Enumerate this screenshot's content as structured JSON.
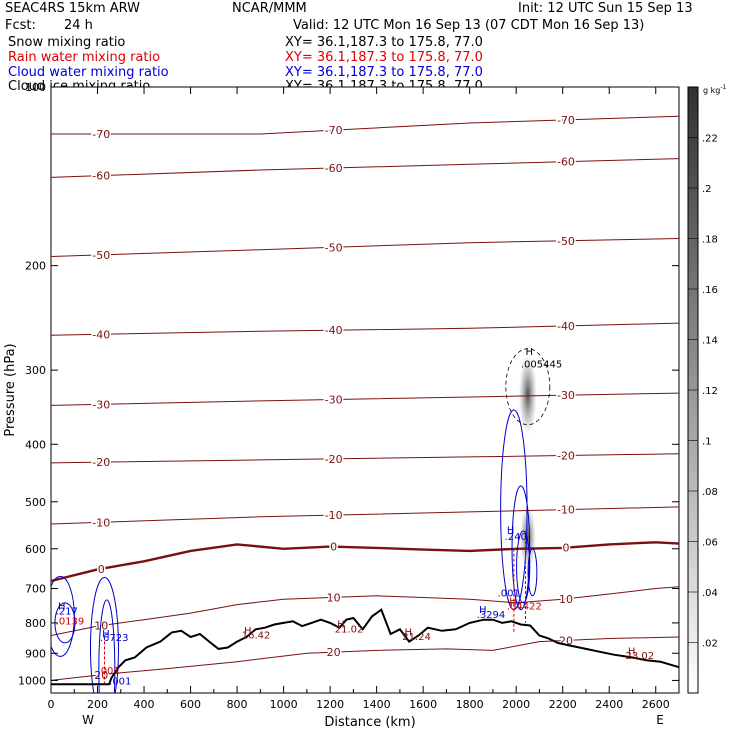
{
  "header": {
    "model": "SEAC4RS 15km ARW",
    "org": "NCAR/MMM",
    "init": "Init: 12 UTC Sun 15 Sep 13",
    "fcst_label": "Fcst:",
    "fcst_value": "24 h",
    "valid": "Valid: 12 UTC Mon 16 Sep 13 (07 CDT Mon 16 Sep 13)",
    "fields": [
      {
        "name": "Snow mixing ratio",
        "xy": "XY=  36.1,187.3 to 175.8, 77.0",
        "color": "#000000"
      },
      {
        "name": "Rain water mixing ratio",
        "xy": "XY=  36.1,187.3 to 175.8, 77.0",
        "color": "#e00000"
      },
      {
        "name": "Cloud water mixing ratio",
        "xy": "XY=  36.1,187.3 to 175.8, 77.0",
        "color": "#0000d0"
      },
      {
        "name": "Cloud ice mixing ratio",
        "xy": "XY=  36.1,187.3 to 175.8, 77.0",
        "color": "#000000"
      }
    ]
  },
  "colors": {
    "temperature": "#7a1010",
    "cloud_water": "#0000cc",
    "rain": "#dd0000",
    "terrain": "#000000"
  },
  "chart_data": {
    "type": "contour",
    "xlabel": "Distance (km)",
    "ylabel": "Pressure (hPa)",
    "xlim": [
      0,
      2700
    ],
    "ylim": [
      1050,
      100
    ],
    "y_scale": "log",
    "x_ticks": [
      0,
      200,
      400,
      600,
      800,
      1000,
      1200,
      1400,
      1600,
      1800,
      2000,
      2200,
      2400,
      2600
    ],
    "y_ticks": [
      100,
      200,
      300,
      400,
      500,
      600,
      700,
      800,
      900,
      1000
    ],
    "endpoints": {
      "left": "W",
      "right": "E"
    },
    "colorbar": {
      "unit": "g kg",
      "unit_exp": "-1",
      "ticks": [
        ".02",
        ".04",
        ".06",
        ".08",
        ".1",
        ".12",
        ".14",
        ".16",
        ".18",
        ".2",
        ".22"
      ],
      "min": 0.0,
      "max": 0.24
    },
    "temperature_isotherms": [
      {
        "label": "-70",
        "x": [
          0,
          900,
          1800,
          2700
        ],
        "y": [
          120,
          120,
          115,
          112
        ]
      },
      {
        "label": "-60",
        "x": [
          0,
          900,
          1800,
          2700
        ],
        "y": [
          142,
          138,
          135,
          132
        ]
      },
      {
        "label": "-50",
        "x": [
          0,
          900,
          1800,
          2700
        ],
        "y": [
          193,
          188,
          183,
          180
        ]
      },
      {
        "label": "-40",
        "x": [
          0,
          900,
          1800,
          2700
        ],
        "y": [
          262,
          258,
          255,
          250
        ]
      },
      {
        "label": "-30",
        "x": [
          0,
          900,
          1800,
          2700
        ],
        "y": [
          344,
          338,
          333,
          328
        ]
      },
      {
        "label": "-20",
        "x": [
          0,
          900,
          1800,
          2700
        ],
        "y": [
          430,
          425,
          420,
          415
        ]
      },
      {
        "label": "-10",
        "x": [
          0,
          900,
          1800,
          2700
        ],
        "y": [
          545,
          530,
          520,
          510
        ]
      },
      {
        "label": "0",
        "x": [
          0,
          200,
          400,
          600,
          800,
          1000,
          1200,
          1400,
          1600,
          1800,
          2000,
          2200,
          2400,
          2600,
          2700
        ],
        "y": [
          680,
          650,
          630,
          605,
          590,
          600,
          595,
          598,
          602,
          605,
          600,
          598,
          590,
          585,
          588
        ]
      },
      {
        "label": "10",
        "x": [
          0,
          200,
          400,
          600,
          800,
          1000,
          1200,
          1400,
          1600,
          1800,
          2000,
          2200,
          2400,
          2600,
          2700
        ],
        "y": [
          840,
          810,
          790,
          770,
          745,
          730,
          725,
          720,
          725,
          730,
          740,
          730,
          715,
          700,
          695
        ]
      },
      {
        "label": "20",
        "x": [
          0,
          250,
          500,
          800,
          1100,
          1400,
          1700,
          1900,
          2100,
          2400,
          2700
        ],
        "y": [
          1000,
          975,
          955,
          930,
          900,
          890,
          885,
          890,
          860,
          850,
          845
        ]
      }
    ],
    "terrain": {
      "x": [
        0,
        250,
        260,
        290,
        320,
        360,
        410,
        470,
        520,
        560,
        600,
        640,
        680,
        720,
        760,
        800,
        840,
        880,
        920,
        960,
        1000,
        1040,
        1080,
        1120,
        1160,
        1200,
        1240,
        1270,
        1300,
        1340,
        1380,
        1420,
        1460,
        1500,
        1540,
        1580,
        1620,
        1680,
        1740,
        1800,
        1860,
        1900,
        1940,
        1980,
        2020,
        2060,
        2100,
        2140,
        2180,
        2240,
        2300,
        2360,
        2420,
        2500,
        2560,
        2620,
        2680,
        2700
      ],
      "y": [
        1015,
        1015,
        990,
        950,
        925,
        915,
        880,
        860,
        830,
        825,
        845,
        835,
        860,
        885,
        880,
        860,
        845,
        820,
        815,
        805,
        800,
        795,
        810,
        800,
        790,
        800,
        815,
        790,
        785,
        820,
        780,
        760,
        835,
        820,
        860,
        840,
        815,
        825,
        820,
        800,
        790,
        790,
        800,
        795,
        805,
        808,
        840,
        850,
        865,
        875,
        885,
        895,
        905,
        915,
        925,
        930,
        945,
        950
      ]
    },
    "labels": [
      {
        "text": "H",
        "x": 2040,
        "y": 283,
        "color": "#000000"
      },
      {
        "text": ".005445",
        "x": 2020,
        "y": 297,
        "color": "#000000"
      },
      {
        "text": "H",
        "x": 1960,
        "y": 565,
        "color": "#0000cc"
      },
      {
        "text": ".240",
        "x": 1950,
        "y": 580,
        "color": "#0000cc"
      },
      {
        "text": ".001",
        "x": 1920,
        "y": 722,
        "color": "#0000cc"
      },
      {
        "text": "H",
        "x": 1840,
        "y": 770,
        "color": "#0000cc"
      },
      {
        "text": ".3294",
        "x": 1830,
        "y": 785,
        "color": "#0000cc"
      },
      {
        "text": "H",
        "x": 1970,
        "y": 745,
        "color": "#dd0000"
      },
      {
        "text": ".04422",
        "x": 1960,
        "y": 760,
        "color": "#dd0000"
      },
      {
        "text": "H",
        "x": 830,
        "y": 835,
        "color": "#7a1010"
      },
      {
        "text": "16.42",
        "x": 820,
        "y": 850,
        "color": "#7a1010"
      },
      {
        "text": "H",
        "x": 1230,
        "y": 815,
        "color": "#7a1010"
      },
      {
        "text": "21.02",
        "x": 1220,
        "y": 830,
        "color": "#7a1010"
      },
      {
        "text": "H",
        "x": 1520,
        "y": 840,
        "color": "#7a1010"
      },
      {
        "text": "21.24",
        "x": 1510,
        "y": 855,
        "color": "#7a1010"
      },
      {
        "text": "H",
        "x": 2480,
        "y": 905,
        "color": "#7a1010"
      },
      {
        "text": "23.02",
        "x": 2470,
        "y": 920,
        "color": "#7a1010"
      },
      {
        "text": "H",
        "x": 30,
        "y": 760,
        "color": "#0000cc"
      },
      {
        "text": ".217",
        "x": 20,
        "y": 775,
        "color": "#0000cc"
      },
      {
        "text": ".0139",
        "x": 20,
        "y": 805,
        "color": "#dd0000"
      },
      {
        "text": "H",
        "x": 220,
        "y": 845,
        "color": "#0000cc"
      },
      {
        "text": ".6723",
        "x": 210,
        "y": 858,
        "color": "#0000cc"
      },
      {
        "text": ".001",
        "x": 200,
        "y": 975,
        "color": "#dd0000"
      },
      {
        "text": ".001",
        "x": 250,
        "y": 1015,
        "color": "#0000cc"
      }
    ]
  }
}
